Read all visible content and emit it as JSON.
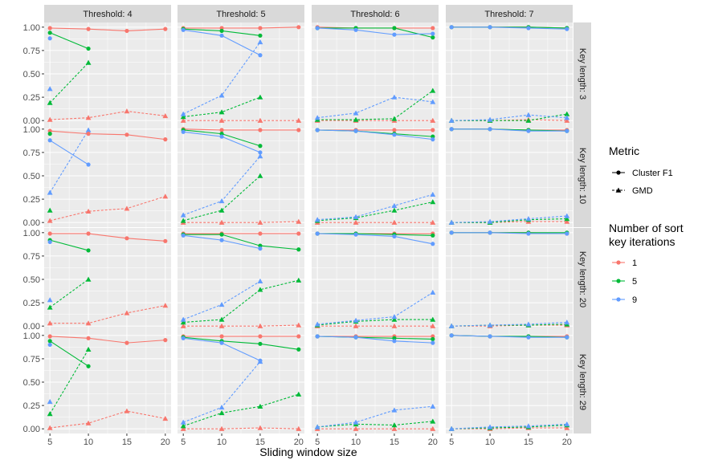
{
  "chart_data": {
    "type": "line",
    "title": "",
    "xlabel": "Sliding window size",
    "ylabel": "",
    "x": [
      5,
      10,
      15,
      20
    ],
    "xticks": [
      "5",
      "10",
      "15",
      "20"
    ],
    "yticks": [
      "0.00",
      "0.25",
      "0.50",
      "0.75",
      "1.00"
    ],
    "ylim": [
      0,
      1
    ],
    "columns": [
      "Threshold: 4",
      "Threshold: 5",
      "Threshold: 6",
      "Threshold: 7"
    ],
    "rows": [
      "Key length: 3",
      "Key length: 10",
      "Key length: 20",
      "Key length: 29"
    ],
    "legend": {
      "metric_title": "Metric",
      "metric_entries": [
        "Cluster F1",
        "GMD"
      ],
      "iter_title_line1": "Number of sort",
      "iter_title_line2": "key iterations",
      "iter_entries": [
        "1",
        "5",
        "9"
      ],
      "colors": {
        "1": "#F8766D",
        "5": "#00BA38",
        "9": "#619CFF"
      }
    },
    "panels": [
      [
        {
          "f1": {
            "1": [
              0.99,
              0.98,
              0.96,
              0.98
            ],
            "5": [
              0.94,
              0.77,
              null,
              null
            ],
            "9": [
              0.88,
              null,
              null,
              null
            ]
          },
          "gmd": {
            "1": [
              0.01,
              0.03,
              0.1,
              0.05
            ],
            "5": [
              0.19,
              0.62,
              null,
              null
            ],
            "9": [
              0.34,
              null,
              null,
              null
            ]
          }
        },
        {
          "f1": {
            "1": [
              0.99,
              0.99,
              0.99,
              1.0
            ],
            "5": [
              0.98,
              0.96,
              0.91,
              null
            ],
            "9": [
              0.97,
              0.91,
              0.7,
              null
            ]
          },
          "gmd": {
            "1": [
              0.0,
              0.0,
              0.0,
              0.0
            ],
            "5": [
              0.04,
              0.09,
              0.25,
              null
            ],
            "9": [
              0.07,
              0.27,
              0.84,
              null
            ]
          }
        },
        {
          "f1": {
            "1": [
              1.0,
              0.99,
              0.99,
              0.99
            ],
            "5": [
              0.99,
              0.99,
              0.99,
              0.89
            ],
            "9": [
              0.99,
              0.97,
              0.92,
              0.93
            ]
          },
          "gmd": {
            "1": [
              0.0,
              0.0,
              0.0,
              0.0
            ],
            "5": [
              0.01,
              0.01,
              0.02,
              0.32
            ],
            "9": [
              0.03,
              0.08,
              0.25,
              0.2
            ]
          }
        },
        {
          "f1": {
            "1": [
              1.0,
              1.0,
              1.0,
              0.99
            ],
            "5": [
              1.0,
              1.0,
              1.0,
              0.99
            ],
            "9": [
              1.0,
              1.0,
              0.99,
              0.98
            ]
          },
          "gmd": {
            "1": [
              0.0,
              0.0,
              0.01,
              0.0
            ],
            "5": [
              0.0,
              0.0,
              0.0,
              0.07
            ],
            "9": [
              0.0,
              0.01,
              0.06,
              0.03
            ]
          }
        }
      ],
      [
        {
          "f1": {
            "1": [
              0.98,
              0.95,
              0.94,
              0.89
            ],
            "5": [
              0.95,
              null,
              null,
              null
            ],
            "9": [
              0.88,
              0.62,
              null,
              null
            ]
          },
          "gmd": {
            "1": [
              0.02,
              0.12,
              0.15,
              0.28
            ],
            "5": [
              0.13,
              null,
              null,
              null
            ],
            "9": [
              0.32,
              0.99,
              null,
              null
            ]
          }
        },
        {
          "f1": {
            "1": [
              1.0,
              0.99,
              0.99,
              0.99
            ],
            "5": [
              0.99,
              0.95,
              0.82,
              null
            ],
            "9": [
              0.97,
              0.92,
              0.75,
              null
            ]
          },
          "gmd": {
            "1": [
              0.0,
              0.0,
              0.0,
              0.01
            ],
            "5": [
              0.02,
              0.13,
              0.5,
              null
            ],
            "9": [
              0.08,
              0.23,
              0.71,
              null
            ]
          }
        },
        {
          "f1": {
            "1": [
              0.99,
              0.99,
              0.99,
              0.99
            ],
            "5": [
              0.99,
              0.98,
              0.95,
              0.92
            ],
            "9": [
              0.99,
              0.98,
              0.94,
              0.89
            ]
          },
          "gmd": {
            "1": [
              0.0,
              0.0,
              0.0,
              0.0
            ],
            "5": [
              0.02,
              0.05,
              0.13,
              0.22
            ],
            "9": [
              0.03,
              0.06,
              0.18,
              0.3
            ]
          }
        },
        {
          "f1": {
            "1": [
              1.0,
              1.0,
              0.99,
              0.99
            ],
            "5": [
              1.0,
              1.0,
              0.99,
              0.98
            ],
            "9": [
              1.0,
              1.0,
              0.98,
              0.98
            ]
          },
          "gmd": {
            "1": [
              0.0,
              0.0,
              0.01,
              0.01
            ],
            "5": [
              0.0,
              0.0,
              0.03,
              0.04
            ],
            "9": [
              0.0,
              0.01,
              0.04,
              0.07
            ]
          }
        }
      ],
      [
        {
          "f1": {
            "1": [
              0.99,
              0.99,
              0.94,
              0.91
            ],
            "5": [
              0.92,
              0.81,
              null,
              null
            ],
            "9": [
              0.9,
              null,
              null,
              null
            ]
          },
          "gmd": {
            "1": [
              0.03,
              0.03,
              0.14,
              0.22
            ],
            "5": [
              0.2,
              0.5,
              null,
              null
            ],
            "9": [
              0.28,
              null,
              null,
              null
            ]
          }
        },
        {
          "f1": {
            "1": [
              0.99,
              0.99,
              0.99,
              0.99
            ],
            "5": [
              0.98,
              0.98,
              0.86,
              0.82
            ],
            "9": [
              0.97,
              0.92,
              0.83,
              null
            ]
          },
          "gmd": {
            "1": [
              0.0,
              0.0,
              0.0,
              0.01
            ],
            "5": [
              0.04,
              0.07,
              0.39,
              0.49
            ],
            "9": [
              0.07,
              0.23,
              0.48,
              null
            ]
          }
        },
        {
          "f1": {
            "1": [
              0.99,
              0.99,
              0.99,
              0.99
            ],
            "5": [
              0.99,
              0.99,
              0.98,
              0.97
            ],
            "9": [
              0.99,
              0.98,
              0.96,
              0.88
            ]
          },
          "gmd": {
            "1": [
              0.0,
              0.0,
              0.0,
              0.0
            ],
            "5": [
              0.01,
              0.05,
              0.07,
              0.07
            ],
            "9": [
              0.02,
              0.06,
              0.1,
              0.36
            ]
          }
        },
        {
          "f1": {
            "1": [
              1.0,
              1.0,
              1.0,
              0.99
            ],
            "5": [
              1.0,
              1.0,
              1.0,
              1.0
            ],
            "9": [
              1.0,
              1.0,
              0.99,
              0.99
            ]
          },
          "gmd": {
            "1": [
              0.0,
              0.0,
              0.01,
              0.01
            ],
            "5": [
              0.0,
              0.01,
              0.01,
              0.02
            ],
            "9": [
              0.0,
              0.01,
              0.02,
              0.04
            ]
          }
        }
      ],
      [
        {
          "f1": {
            "1": [
              0.99,
              0.97,
              0.92,
              0.95
            ],
            "5": [
              0.94,
              0.67,
              null,
              null
            ],
            "9": [
              0.9,
              null,
              null,
              null
            ]
          },
          "gmd": {
            "1": [
              0.01,
              0.06,
              0.19,
              0.11
            ],
            "5": [
              0.16,
              0.85,
              null,
              null
            ],
            "9": [
              0.29,
              null,
              null,
              null
            ]
          }
        },
        {
          "f1": {
            "1": [
              0.99,
              0.99,
              0.99,
              0.99
            ],
            "5": [
              0.98,
              0.94,
              0.91,
              0.85
            ],
            "9": [
              0.97,
              0.92,
              0.73,
              null
            ]
          },
          "gmd": {
            "1": [
              0.0,
              0.0,
              0.01,
              0.0
            ],
            "5": [
              0.03,
              0.17,
              0.24,
              0.37
            ],
            "9": [
              0.07,
              0.23,
              0.72,
              null
            ]
          }
        },
        {
          "f1": {
            "1": [
              0.99,
              0.99,
              0.99,
              0.99
            ],
            "5": [
              0.99,
              0.98,
              0.97,
              0.96
            ],
            "9": [
              0.99,
              0.98,
              0.94,
              0.92
            ]
          },
          "gmd": {
            "1": [
              0.0,
              0.0,
              0.0,
              0.0
            ],
            "5": [
              0.02,
              0.05,
              0.04,
              0.08
            ],
            "9": [
              0.02,
              0.07,
              0.2,
              0.24
            ]
          }
        },
        {
          "f1": {
            "1": [
              1.0,
              0.99,
              0.99,
              0.99
            ],
            "5": [
              1.0,
              0.99,
              0.99,
              0.98
            ],
            "9": [
              1.0,
              0.99,
              0.98,
              0.98
            ]
          },
          "gmd": {
            "1": [
              0.0,
              0.0,
              0.01,
              0.01
            ],
            "5": [
              0.0,
              0.01,
              0.02,
              0.04
            ],
            "9": [
              0.0,
              0.02,
              0.03,
              0.05
            ]
          }
        }
      ]
    ]
  }
}
